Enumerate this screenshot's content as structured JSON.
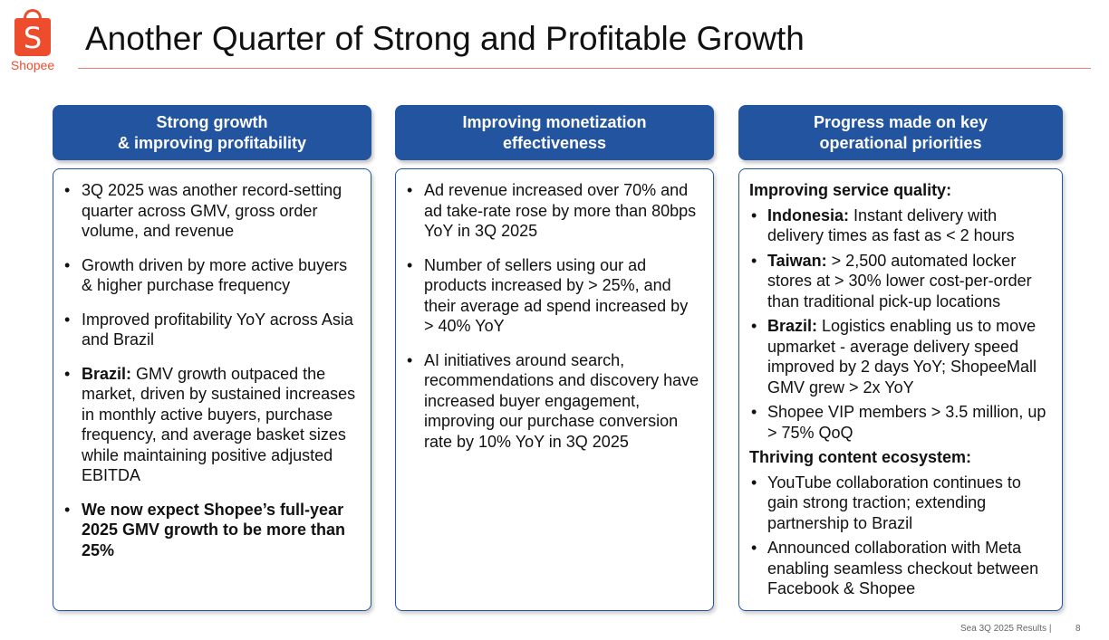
{
  "brand": {
    "name": "Shopee",
    "icon": "shopping-bag-icon",
    "color": "#ee4d2d",
    "logo_letter": "S"
  },
  "title": "Another Quarter of Strong and Profitable Growth",
  "accent": "#2354a0",
  "columns": [
    {
      "header": [
        "Strong growth",
        "& improving profitability"
      ],
      "bullets": [
        {
          "bold": "",
          "text": "3Q 2025 was another record-setting quarter across GMV, gross order volume, and revenue"
        },
        {
          "bold": "",
          "text": "Growth driven by more active buyers & higher purchase frequency"
        },
        {
          "bold": "",
          "text": "Improved profitability YoY across Asia and Brazil"
        },
        {
          "bold": "Brazil:",
          "text": " GMV growth outpaced the market, driven by sustained increases in monthly active buyers, purchase frequency, and average basket sizes while maintaining positive adjusted EBITDA"
        },
        {
          "bold": "We now expect Shopee’s full-year 2025 GMV growth to be more than 25%",
          "text": ""
        }
      ]
    },
    {
      "header": [
        "Improving monetization",
        "effectiveness"
      ],
      "bullets": [
        {
          "bold": "",
          "text": "Ad revenue increased over 70% and ad take-rate rose by more than 80bps YoY in 3Q 2025"
        },
        {
          "bold": "",
          "text": "Number of sellers using our ad products increased by > 25%, and their average ad spend increased by > 40% YoY"
        },
        {
          "bold": "",
          "text": "AI initiatives around search, recommendations and discovery have increased buyer engagement, improving our purchase conversion rate by 10% YoY in 3Q 2025"
        }
      ]
    },
    {
      "header": [
        "Progress made on key",
        "operational priorities"
      ],
      "sections": [
        {
          "heading": "Improving service quality:",
          "bullets": [
            {
              "bold": "Indonesia:",
              "text": " Instant delivery with delivery times as fast as < 2 hours"
            },
            {
              "bold": "Taiwan:",
              "text": " > 2,500 automated locker stores at > 30% lower cost-per-order than traditional pick-up locations"
            },
            {
              "bold": "Brazil:",
              "text": " Logistics enabling us to move upmarket - average delivery speed improved by 2 days YoY; ShopeeMall GMV grew > 2x YoY"
            },
            {
              "bold": "",
              "text": "Shopee VIP members > 3.5 million, up > 75% QoQ"
            }
          ]
        },
        {
          "heading": "Thriving content ecosystem:",
          "bullets": [
            {
              "bold": "",
              "text": "YouTube collaboration continues to gain strong traction; extending partnership to Brazil"
            },
            {
              "bold": "",
              "text": "Announced collaboration with Meta enabling seamless checkout between Facebook & Shopee"
            }
          ]
        }
      ]
    }
  ],
  "footer": {
    "text": "Sea 3Q 2025 Results |",
    "page": "8"
  }
}
